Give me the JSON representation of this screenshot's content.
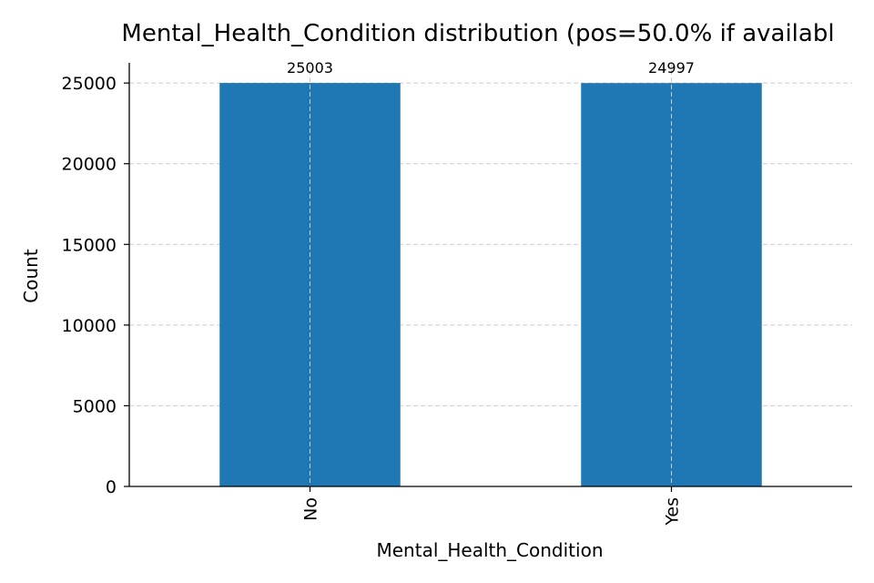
{
  "chart_data": {
    "type": "bar",
    "title": "Mental_Health_Condition distribution (pos=50.0% if availabl",
    "xlabel": "Mental_Health_Condition",
    "ylabel": "Count",
    "categories": [
      "No",
      "Yes"
    ],
    "values": [
      25003,
      24997
    ],
    "data_labels": [
      "25003",
      "24997"
    ],
    "y_ticks": [
      0,
      5000,
      10000,
      15000,
      20000,
      25000
    ],
    "y_tick_labels": [
      "0",
      "5000",
      "10000",
      "15000",
      "20000",
      "25000"
    ],
    "ylim": [
      0,
      26250
    ],
    "grid": true,
    "bar_color": "#1f77b4",
    "x_tick_rotation": "vertical"
  }
}
